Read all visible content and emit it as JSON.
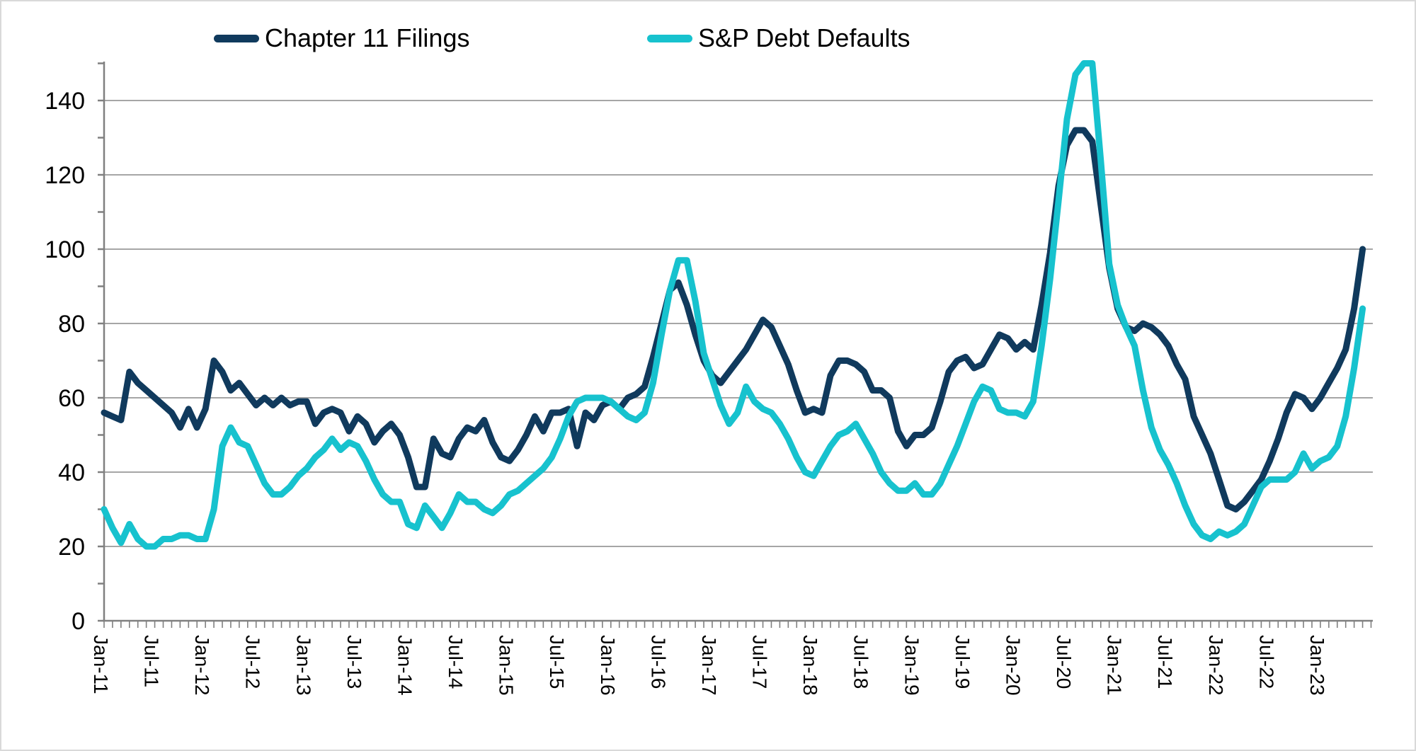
{
  "legend": {
    "items": [
      {
        "label": "Chapter 11 Filings",
        "color": "#103a5d"
      },
      {
        "label": "S&P Debt Defaults",
        "color": "#17c2ce"
      }
    ]
  },
  "axis_colors": {
    "gridline": "#a6a6a6",
    "axis_line": "#808080",
    "tick": "#808080",
    "label": "#000000"
  },
  "chart_data": {
    "type": "line",
    "title": "",
    "xlabel": "",
    "ylabel": "",
    "x_start": "Jan-11",
    "x_freq": "monthly",
    "x_tick_labels": [
      "Jan-11",
      "Jul-11",
      "Jan-12",
      "Jul-12",
      "Jan-13",
      "Jul-13",
      "Jan-14",
      "Jul-14",
      "Jan-15",
      "Jul-15",
      "Jan-16",
      "Jul-16",
      "Jan-17",
      "Jul-17",
      "Jan-18",
      "Jul-18",
      "Jan-19",
      "Jul-19",
      "Jan-20",
      "Jul-20",
      "Jan-21",
      "Jul-21",
      "Jan-22",
      "Jul-22",
      "Jan-23"
    ],
    "x_label_every_n_months": 6,
    "yticks": [
      0,
      20,
      40,
      60,
      80,
      100,
      120,
      140
    ],
    "y_minor_tick_step": 10,
    "ylim": [
      0,
      152
    ],
    "grid": "horizontal",
    "legend_position": "top",
    "series": [
      {
        "name": "Chapter 11 Filings",
        "color": "#103a5d",
        "values": [
          56,
          55,
          54,
          67,
          64,
          62,
          60,
          58,
          56,
          52,
          57,
          52,
          57,
          70,
          67,
          62,
          64,
          61,
          58,
          60,
          58,
          60,
          58,
          59,
          59,
          53,
          56,
          57,
          56,
          51,
          55,
          53,
          48,
          51,
          53,
          50,
          44,
          36,
          36,
          49,
          45,
          44,
          49,
          52,
          51,
          54,
          48,
          44,
          43,
          46,
          50,
          55,
          51,
          56,
          56,
          57,
          47,
          56,
          54,
          58,
          59,
          57,
          60,
          61,
          63,
          71,
          80,
          89,
          91,
          85,
          77,
          70,
          66,
          64,
          67,
          70,
          73,
          77,
          81,
          79,
          74,
          69,
          62,
          56,
          57,
          56,
          66,
          70,
          70,
          69,
          67,
          62,
          62,
          60,
          51,
          47,
          50,
          50,
          52,
          59,
          67,
          70,
          71,
          68,
          69,
          73,
          77,
          76,
          73,
          75,
          73,
          85,
          99,
          117,
          128,
          132,
          132,
          129,
          112,
          95,
          84,
          79,
          78,
          80,
          79,
          77,
          74,
          69,
          65,
          55,
          50,
          45,
          38,
          31,
          30,
          32,
          35,
          38,
          43,
          49,
          56,
          61,
          60,
          57,
          60,
          64,
          68,
          73,
          84,
          100
        ]
      },
      {
        "name": "S&P Debt Defaults",
        "color": "#17c2ce",
        "values": [
          30,
          25,
          21,
          26,
          22,
          20,
          20,
          22,
          22,
          23,
          23,
          22,
          22,
          30,
          47,
          52,
          48,
          47,
          42,
          37,
          34,
          34,
          36,
          39,
          41,
          44,
          46,
          49,
          46,
          48,
          47,
          43,
          38,
          34,
          32,
          32,
          26,
          25,
          31,
          28,
          25,
          29,
          34,
          32,
          32,
          30,
          29,
          31,
          34,
          35,
          37,
          39,
          41,
          44,
          49,
          55,
          59,
          60,
          60,
          60,
          59,
          57,
          55,
          54,
          56,
          64,
          77,
          89,
          97,
          97,
          86,
          72,
          65,
          58,
          53,
          56,
          63,
          59,
          57,
          56,
          53,
          49,
          44,
          40,
          39,
          43,
          47,
          50,
          51,
          53,
          49,
          45,
          40,
          37,
          35,
          35,
          37,
          34,
          34,
          37,
          42,
          47,
          53,
          59,
          63,
          62,
          57,
          56,
          56,
          55,
          59,
          74,
          92,
          113,
          135,
          147,
          150,
          150,
          124,
          96,
          85,
          79,
          74,
          62,
          52,
          46,
          42,
          37,
          31,
          26,
          23,
          22,
          24,
          23,
          24,
          26,
          31,
          36,
          38,
          38,
          38,
          40,
          45,
          41,
          43,
          44,
          47,
          55,
          68,
          84
        ]
      }
    ]
  }
}
